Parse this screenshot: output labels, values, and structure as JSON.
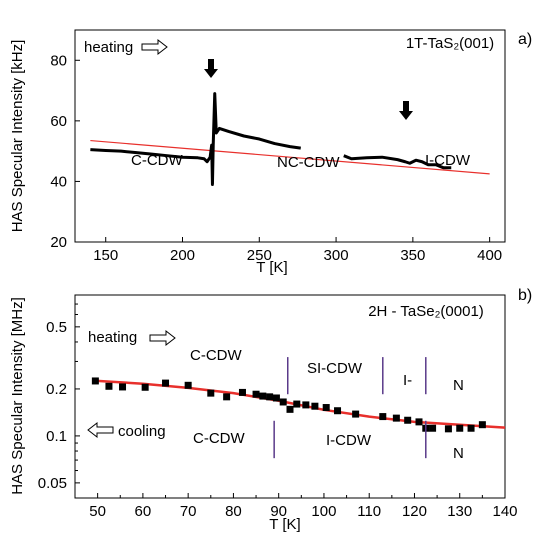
{
  "chart_data": [
    {
      "panel_label": "a)",
      "type": "line",
      "title": "1T-TaS₂(001)",
      "xlabel": "T [K]",
      "ylabel": "HAS Specular Intensity [kHz]",
      "xlim": [
        130,
        410
      ],
      "ylim": [
        20,
        90
      ],
      "xticks": [
        "150",
        "200",
        "250",
        "300",
        "350",
        "400"
      ],
      "yticks": [
        "20",
        "40",
        "60",
        "80"
      ],
      "series": [
        {
          "kind": "measured",
          "color": "#000000",
          "segments": [
            [
              [
                140,
                50.5
              ],
              [
                150,
                50.2
              ],
              [
                160,
                50.0
              ],
              [
                170,
                49.5
              ],
              [
                180,
                49.0
              ],
              [
                190,
                48.5
              ],
              [
                200,
                48.0
              ],
              [
                210,
                47.8
              ],
              [
                214,
                47.5
              ],
              [
                216,
                46.5
              ],
              [
                218,
                48.0
              ],
              [
                219,
                52.0
              ],
              [
                219.5,
                39.0
              ],
              [
                220,
                52.0
              ],
              [
                221,
                69.0
              ],
              [
                222,
                56.0
              ],
              [
                224,
                57.5
              ],
              [
                230,
                56.5
              ],
              [
                240,
                55.0
              ],
              [
                250,
                54.0
              ],
              [
                260,
                52.5
              ],
              [
                270,
                51.5
              ],
              [
                277,
                51.0
              ]
            ],
            [
              [
                305,
                48.5
              ],
              [
                310,
                47.5
              ],
              [
                320,
                47.8
              ],
              [
                330,
                48.0
              ],
              [
                340,
                47.2
              ],
              [
                345,
                46.5
              ],
              [
                348,
                46.0
              ],
              [
                352,
                47.0
              ],
              [
                356,
                46.5
              ],
              [
                360,
                45.5
              ],
              [
                365,
                45.5
              ],
              [
                370,
                44.5
              ],
              [
                375,
                44.5
              ]
            ]
          ]
        },
        {
          "kind": "fit",
          "color": "#e8302c",
          "points": [
            [
              140,
              53.5
            ],
            [
              400,
              42.5
            ]
          ]
        }
      ],
      "annotations": {
        "heating": "heating",
        "phases": [
          "C-CDW",
          "NC-CDW",
          "I-CDW"
        ],
        "arrows_at_x": [
          222,
          348
        ]
      }
    },
    {
      "panel_label": "b)",
      "type": "scatter",
      "title": "2H - TaSe₂(0001)",
      "xlabel": "T [K]",
      "ylabel": "HAS Specular Intensity [MHz]",
      "yscale": "log",
      "xlim": [
        45,
        140
      ],
      "ylim": [
        0.04,
        0.8
      ],
      "xticks": [
        "50",
        "60",
        "70",
        "80",
        "90",
        "100",
        "110",
        "120",
        "130",
        "140"
      ],
      "yticks": [
        "0.05",
        "0.1",
        "0.2",
        "0.5"
      ],
      "series": [
        {
          "kind": "measured",
          "color": "#000000",
          "points": [
            [
              49.5,
              0.225
            ],
            [
              52.5,
              0.208
            ],
            [
              55.5,
              0.206
            ],
            [
              60.5,
              0.205
            ],
            [
              65,
              0.218
            ],
            [
              70,
              0.211
            ],
            [
              75,
              0.188
            ],
            [
              78.5,
              0.178
            ],
            [
              82,
              0.19
            ],
            [
              85,
              0.185
            ],
            [
              86.5,
              0.18
            ],
            [
              88,
              0.178
            ],
            [
              89.5,
              0.175
            ],
            [
              91,
              0.165
            ],
            [
              92.5,
              0.148
            ],
            [
              94,
              0.16
            ],
            [
              96,
              0.158
            ],
            [
              98,
              0.155
            ],
            [
              100.5,
              0.152
            ],
            [
              103,
              0.145
            ],
            [
              107,
              0.138
            ],
            [
              113,
              0.133
            ],
            [
              116,
              0.13
            ],
            [
              118.5,
              0.126
            ],
            [
              121,
              0.123
            ],
            [
              122.5,
              0.112
            ],
            [
              124,
              0.112
            ],
            [
              127.5,
              0.111
            ],
            [
              130,
              0.112
            ],
            [
              132.5,
              0.112
            ],
            [
              135,
              0.118
            ]
          ]
        },
        {
          "kind": "fit",
          "color": "#e8302c",
          "points": [
            [
              49,
              0.226
            ],
            [
              60,
              0.216
            ],
            [
              70,
              0.203
            ],
            [
              80,
              0.188
            ],
            [
              90,
              0.168
            ],
            [
              100,
              0.147
            ],
            [
              110,
              0.133
            ],
            [
              120,
              0.123
            ],
            [
              130,
              0.118
            ],
            [
              140,
              0.113
            ]
          ]
        }
      ],
      "annotations": {
        "heating": "heating",
        "cooling": "cooling",
        "heating_phases": [
          "C-CDW",
          "SI-CDW",
          "I-",
          "N"
        ],
        "cooling_phases": [
          "C-CDW",
          "I-CDW",
          "N"
        ],
        "heating_boundaries_x": [
          92,
          113,
          122.5
        ],
        "cooling_boundaries_x": [
          89,
          122.5
        ]
      }
    }
  ]
}
